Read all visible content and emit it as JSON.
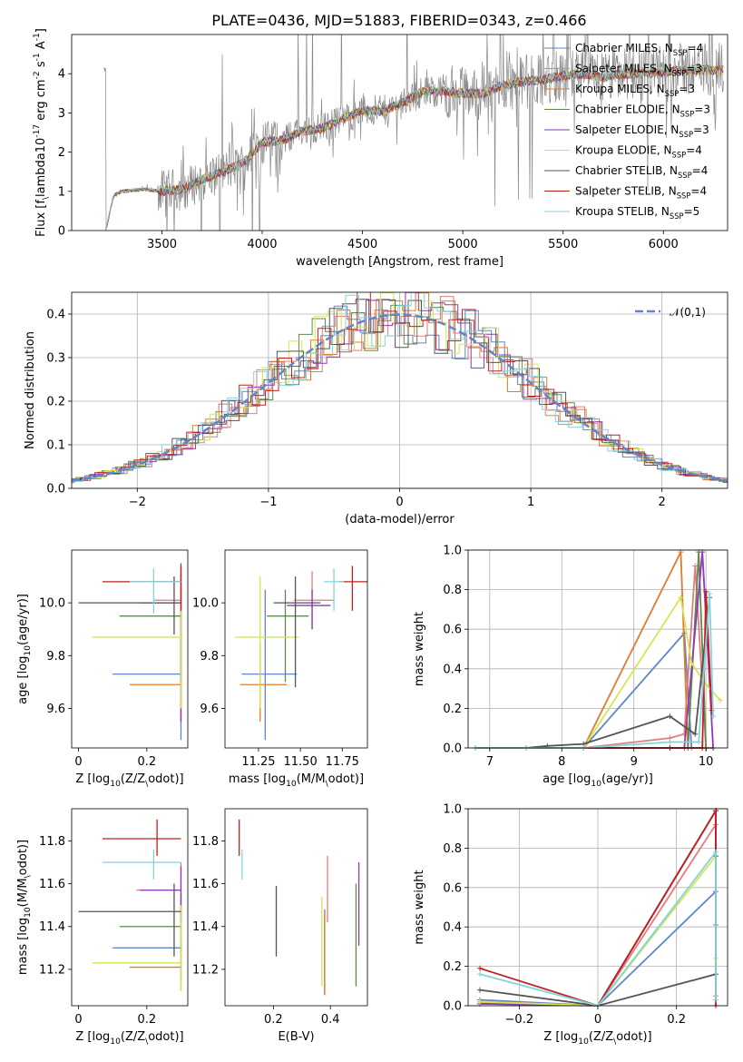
{
  "figure": {
    "title": "PLATE=0436, MJD=51883, FIBERID=0343, z=0.466"
  },
  "colors": {
    "Chabrier MILES": "#5f86c9",
    "Salpeter MILES": "#e37d7b",
    "Kroupa MILES": "#e07b2a",
    "Chabrier ELODIE": "#5e8a4f",
    "Salpeter ELODIE": "#8e3ab1",
    "Kroupa ELODIE": "#d5e552",
    "Chabrier STELIB": "#555555",
    "Salpeter STELIB": "#c21f1f",
    "Kroupa STELIB": "#7fd5dc",
    "data": "#888888",
    "gaussian": "#5f86c9"
  },
  "chart_data": [
    {
      "id": "spectrum",
      "type": "line",
      "xlabel": "wavelength [Angstrom, rest frame]",
      "ylabel": "Flux [f$_\\lambda$10$^{-17}$ erg cm$^{-2}$ s$^{-1}$ A$^{-1}$]",
      "xlim": [
        3050,
        6320
      ],
      "ylim": [
        0,
        5
      ],
      "xticks": [
        3500,
        4000,
        4500,
        5000,
        5500,
        6000
      ],
      "yticks": [
        0,
        1,
        2,
        3,
        4
      ],
      "legend_position": "right",
      "legend": [
        {
          "name": "Chabrier MILES",
          "nssp": "4"
        },
        {
          "name": "Salpeter MILES",
          "nssp": "3"
        },
        {
          "name": "Kroupa MILES",
          "nssp": "3"
        },
        {
          "name": "Chabrier ELODIE",
          "nssp": "3"
        },
        {
          "name": "Salpeter ELODIE",
          "nssp": "3"
        },
        {
          "name": "Kroupa ELODIE",
          "nssp": "4"
        },
        {
          "name": "Chabrier STELIB",
          "nssp": "4"
        },
        {
          "name": "Salpeter STELIB",
          "nssp": "4"
        },
        {
          "name": "Kroupa STELIB",
          "nssp": "5"
        }
      ],
      "model_continuum": {
        "x": [
          3220,
          3260,
          3300,
          3400,
          3500,
          3600,
          3700,
          3800,
          3900,
          4000,
          4100,
          4200,
          4300,
          4400,
          4500,
          4600,
          4700,
          4800,
          4900,
          5000,
          5100,
          5200,
          5300,
          5400,
          5500,
          5600,
          5700,
          5800,
          5900,
          6000,
          6100,
          6200,
          6300
        ],
        "y": [
          0.0,
          0.9,
          1.0,
          1.05,
          1.0,
          1.05,
          1.3,
          1.5,
          1.7,
          2.25,
          2.3,
          2.55,
          2.6,
          2.85,
          3.05,
          3.05,
          3.25,
          3.55,
          3.55,
          3.5,
          3.5,
          3.7,
          3.8,
          3.85,
          3.95,
          4.0,
          3.9,
          4.0,
          4.0,
          4.05,
          4.1,
          4.1,
          4.1
        ]
      }
    },
    {
      "id": "residuals",
      "type": "histogram",
      "xlabel": "(data-model)/error",
      "ylabel": "Normed distribution",
      "xlim": [
        -2.5,
        2.5
      ],
      "ylim": [
        0,
        0.45
      ],
      "xticks": [
        -2,
        -1,
        0,
        1,
        2
      ],
      "yticks": [
        0.0,
        0.1,
        0.2,
        0.3,
        0.4
      ],
      "grid": true,
      "legend_position": "top-right",
      "legend": "$\\mathcal{N}(0,1)$",
      "bin_width": 0.1,
      "reference_curve": "standard normal"
    },
    {
      "id": "age-vs-Z",
      "type": "errorbar",
      "xlabel": "Z [log$_{10}$(Z/Z$_\\odot$)]",
      "ylabel": "age  [log$_{10}$(age/yr)]",
      "xlim": [
        -0.02,
        0.32
      ],
      "ylim": [
        9.45,
        10.2
      ],
      "xticks": [
        0.0,
        0.2
      ],
      "yticks": [
        9.6,
        9.8,
        10.0
      ],
      "points": [
        {
          "series": "Chabrier MILES",
          "x": 0.3,
          "y": 9.73,
          "xlo": 0.1,
          "xhi": 0.3,
          "ylo": 9.48,
          "yhi": 10.1
        },
        {
          "series": "Salpeter MILES",
          "x": 0.3,
          "y": 10.01,
          "xlo": 0.22,
          "xhi": 0.3,
          "ylo": 9.9,
          "yhi": 10.12
        },
        {
          "series": "Kroupa MILES",
          "x": 0.3,
          "y": 9.69,
          "xlo": 0.15,
          "xhi": 0.3,
          "ylo": 9.55,
          "yhi": 9.9
        },
        {
          "series": "Chabrier ELODIE",
          "x": 0.3,
          "y": 9.95,
          "xlo": 0.12,
          "xhi": 0.3,
          "ylo": 9.7,
          "yhi": 10.05
        },
        {
          "series": "Salpeter ELODIE",
          "x": 0.3,
          "y": 10.0,
          "xlo": 0.18,
          "xhi": 0.3,
          "ylo": 9.55,
          "yhi": 10.15
        },
        {
          "series": "Kroupa ELODIE",
          "x": 0.3,
          "y": 9.87,
          "xlo": 0.04,
          "xhi": 0.3,
          "ylo": 9.6,
          "yhi": 10.1
        },
        {
          "series": "Chabrier STELIB",
          "x": 0.28,
          "y": 10.0,
          "xlo": 0.0,
          "xhi": 0.3,
          "ylo": 9.88,
          "yhi": 10.1
        },
        {
          "series": "Salpeter STELIB",
          "x": 0.3,
          "y": 10.08,
          "xlo": 0.07,
          "xhi": 0.3,
          "ylo": 9.97,
          "yhi": 10.14
        },
        {
          "series": "Kroupa STELIB",
          "x": 0.22,
          "y": 10.08,
          "xlo": 0.15,
          "xhi": 0.3,
          "ylo": 9.96,
          "yhi": 10.13
        }
      ]
    },
    {
      "id": "age-vs-mass",
      "type": "errorbar",
      "xlabel": "mass [log$_{10}$(M/M$_\\odot$)]",
      "ylabel": "",
      "xlim": [
        11.05,
        11.9
      ],
      "ylim": [
        9.45,
        10.2
      ],
      "xticks": [
        11.25,
        11.5,
        11.75
      ],
      "xticklabels": [
        "11.25",
        "11.50",
        "11.75"
      ],
      "yticks": [
        9.6,
        9.8,
        10.0
      ],
      "points": [
        {
          "series": "Chabrier MILES",
          "x": 11.29,
          "y": 9.73,
          "xlo": 11.15,
          "xhi": 11.48,
          "ylo": 9.48,
          "yhi": 10.05
        },
        {
          "series": "Salpeter MILES",
          "x": 11.57,
          "y": 10.01,
          "xlo": 11.46,
          "xhi": 11.7,
          "ylo": 9.9,
          "yhi": 10.12
        },
        {
          "series": "Kroupa MILES",
          "x": 11.26,
          "y": 9.69,
          "xlo": 11.14,
          "xhi": 11.42,
          "ylo": 9.55,
          "yhi": 9.85
        },
        {
          "series": "Chabrier ELODIE",
          "x": 11.41,
          "y": 9.95,
          "xlo": 11.3,
          "xhi": 11.55,
          "ylo": 9.7,
          "yhi": 10.05
        },
        {
          "series": "Salpeter ELODIE",
          "x": 11.57,
          "y": 9.99,
          "xlo": 11.42,
          "xhi": 11.68,
          "ylo": 9.9,
          "yhi": 10.05
        },
        {
          "series": "Kroupa ELODIE",
          "x": 11.26,
          "y": 9.87,
          "xlo": 11.11,
          "xhi": 11.49,
          "ylo": 9.6,
          "yhi": 10.1
        },
        {
          "series": "Chabrier STELIB",
          "x": 11.47,
          "y": 10.0,
          "xlo": 11.34,
          "xhi": 11.62,
          "ylo": 9.68,
          "yhi": 10.1
        },
        {
          "series": "Salpeter STELIB",
          "x": 11.81,
          "y": 10.08,
          "xlo": 11.73,
          "xhi": 11.9,
          "ylo": 9.97,
          "yhi": 10.14
        },
        {
          "series": "Kroupa STELIB",
          "x": 11.7,
          "y": 10.08,
          "xlo": 11.64,
          "xhi": 11.76,
          "ylo": 9.97,
          "yhi": 10.13
        }
      ]
    },
    {
      "id": "weight-vs-age",
      "type": "line",
      "xlabel": "age  [log$_{10}$(age/yr)]",
      "ylabel": "mass weight",
      "xlim": [
        6.7,
        10.3
      ],
      "ylim": [
        0,
        1
      ],
      "xticks": [
        7,
        8,
        9,
        10
      ],
      "yticks": [
        0.0,
        0.2,
        0.4,
        0.6,
        0.8,
        1.0
      ],
      "grid": true,
      "series": [
        {
          "name": "Chabrier MILES",
          "x": [
            6.8,
            7.5,
            8.3,
            9.7,
            9.8,
            10.0,
            10.1
          ],
          "y": [
            0.0,
            0.0,
            0.0,
            0.58,
            0.0,
            0.0,
            0.0
          ]
        },
        {
          "name": "Salpeter MILES",
          "x": [
            6.8,
            7.5,
            8.3,
            9.5,
            9.7,
            9.85,
            10.0,
            10.1
          ],
          "y": [
            0.0,
            0.0,
            0.0,
            0.05,
            0.07,
            0.92,
            0.0,
            0.0
          ]
        },
        {
          "name": "Kroupa MILES",
          "x": [
            6.8,
            7.5,
            8.3,
            9.65,
            9.75,
            10.0
          ],
          "y": [
            0.0,
            0.0,
            0.0,
            0.99,
            0.0,
            0.0
          ]
        },
        {
          "name": "Chabrier ELODIE",
          "x": [
            6.8,
            7.5,
            8.3,
            9.75,
            9.9,
            10.0
          ],
          "y": [
            0.0,
            0.0,
            0.0,
            0.0,
            0.99,
            0.0
          ]
        },
        {
          "name": "Salpeter ELODIE",
          "x": [
            6.8,
            7.5,
            8.3,
            9.5,
            9.7,
            9.95,
            10.1
          ],
          "y": [
            0.0,
            0.0,
            0.0,
            0.0,
            0.0,
            0.99,
            0.0
          ]
        },
        {
          "name": "Kroupa ELODIE",
          "x": [
            6.8,
            7.5,
            8.3,
            9.65,
            9.8,
            10.0,
            10.2
          ],
          "y": [
            0.0,
            0.0,
            0.0,
            0.76,
            0.43,
            0.32,
            0.24
          ]
        },
        {
          "name": "Chabrier STELIB",
          "x": [
            6.8,
            7.5,
            7.8,
            8.3,
            9.5,
            9.85,
            10.05
          ],
          "y": [
            0.0,
            0.0,
            0.01,
            0.02,
            0.16,
            0.07,
            0.76
          ]
        },
        {
          "name": "Salpeter STELIB",
          "x": [
            6.8,
            7.5,
            8.3,
            9.5,
            9.95,
            10.0,
            10.08
          ],
          "y": [
            0.0,
            0.0,
            0.0,
            0.0,
            0.0,
            0.79,
            0.19
          ]
        },
        {
          "name": "Kroupa STELIB",
          "x": [
            6.8,
            7.5,
            8.3,
            9.5,
            9.9,
            10.05,
            10.1
          ],
          "y": [
            0.0,
            0.0,
            0.0,
            0.03,
            0.03,
            0.78,
            0.16
          ]
        }
      ]
    },
    {
      "id": "mass-vs-Z",
      "type": "errorbar",
      "xlabel": "Z [log$_{10}$(Z/Z$_\\odot$)]",
      "ylabel": "mass [log$_{10}$(M/M$_\\odot$)]",
      "xlim": [
        -0.02,
        0.32
      ],
      "ylim": [
        11.03,
        11.95
      ],
      "xticks": [
        0.0,
        0.2
      ],
      "yticks": [
        11.2,
        11.4,
        11.6,
        11.8
      ],
      "points": [
        {
          "series": "Chabrier MILES",
          "x": 0.3,
          "y": 11.3,
          "xlo": 0.1,
          "xhi": 0.3,
          "ylo": 11.15,
          "yhi": 11.45
        },
        {
          "series": "Salpeter MILES",
          "x": 0.3,
          "y": 11.57,
          "xlo": 0.17,
          "xhi": 0.3,
          "ylo": 11.45,
          "yhi": 11.7
        },
        {
          "series": "Kroupa MILES",
          "x": 0.3,
          "y": 11.21,
          "xlo": 0.15,
          "xhi": 0.3,
          "ylo": 11.1,
          "yhi": 11.35
        },
        {
          "series": "Chabrier ELODIE",
          "x": 0.3,
          "y": 11.4,
          "xlo": 0.12,
          "xhi": 0.3,
          "ylo": 11.28,
          "yhi": 11.55
        },
        {
          "series": "Salpeter ELODIE",
          "x": 0.3,
          "y": 11.57,
          "xlo": 0.18,
          "xhi": 0.3,
          "ylo": 11.42,
          "yhi": 11.68
        },
        {
          "series": "Kroupa ELODIE",
          "x": 0.3,
          "y": 11.23,
          "xlo": 0.04,
          "xhi": 0.3,
          "ylo": 11.1,
          "yhi": 11.5
        },
        {
          "series": "Chabrier STELIB",
          "x": 0.28,
          "y": 11.47,
          "xlo": 0.0,
          "xhi": 0.3,
          "ylo": 11.26,
          "yhi": 11.6
        },
        {
          "series": "Salpeter STELIB",
          "x": 0.23,
          "y": 11.81,
          "xlo": 0.07,
          "xhi": 0.3,
          "ylo": 11.73,
          "yhi": 11.9
        },
        {
          "series": "Kroupa STELIB",
          "x": 0.22,
          "y": 11.7,
          "xlo": 0.07,
          "xhi": 0.3,
          "ylo": 11.62,
          "yhi": 11.76
        }
      ]
    },
    {
      "id": "mass-vs-ebv",
      "type": "errorbar",
      "xlabel": "E(B-V)",
      "ylabel": "",
      "xlim": [
        0.03,
        0.53
      ],
      "ylim": [
        11.03,
        11.95
      ],
      "xticks": [
        0.2,
        0.4
      ],
      "yticks": [
        11.2,
        11.4,
        11.6,
        11.8
      ],
      "points": [
        {
          "series": "Chabrier MILES",
          "x": 0.38,
          "y": 11.3,
          "ylo": 11.08,
          "yhi": 11.48
        },
        {
          "series": "Salpeter MILES",
          "x": 0.39,
          "y": 11.57,
          "ylo": 11.42,
          "yhi": 11.73
        },
        {
          "series": "Kroupa MILES",
          "x": 0.38,
          "y": 11.21,
          "ylo": 11.08,
          "yhi": 11.46
        },
        {
          "series": "Chabrier ELODIE",
          "x": 0.49,
          "y": 11.4,
          "ylo": 11.12,
          "yhi": 11.6
        },
        {
          "series": "Salpeter ELODIE",
          "x": 0.5,
          "y": 11.57,
          "ylo": 11.31,
          "yhi": 11.7
        },
        {
          "series": "Kroupa ELODIE",
          "x": 0.37,
          "y": 11.23,
          "ylo": 11.12,
          "yhi": 11.54
        },
        {
          "series": "Chabrier STELIB",
          "x": 0.21,
          "y": 11.47,
          "ylo": 11.26,
          "yhi": 11.59
        },
        {
          "series": "Salpeter STELIB",
          "x": 0.08,
          "y": 11.81,
          "ylo": 11.73,
          "yhi": 11.9
        },
        {
          "series": "Kroupa STELIB",
          "x": 0.09,
          "y": 11.7,
          "ylo": 11.62,
          "yhi": 11.76
        }
      ]
    },
    {
      "id": "weight-vs-Z",
      "type": "line",
      "xlabel": "Z [log$_{10}$(Z/Z$_\\odot$)]",
      "ylabel": "mass weight",
      "xlim": [
        -0.33,
        0.33
      ],
      "ylim": [
        0,
        1
      ],
      "xticks": [
        -0.2,
        0.0,
        0.2
      ],
      "yticks": [
        0.0,
        0.2,
        0.4,
        0.6,
        0.8,
        1.0
      ],
      "grid": true,
      "series": [
        {
          "name": "Chabrier MILES",
          "x": [
            -0.3,
            0.0,
            0.3,
            0.3
          ],
          "y": [
            0.03,
            0.0,
            0.58,
            0.41
          ]
        },
        {
          "name": "Salpeter MILES",
          "x": [
            -0.3,
            0.0,
            0.3,
            0.3
          ],
          "y": [
            0.02,
            0.0,
            0.92,
            0.05
          ]
        },
        {
          "name": "Kroupa MILES",
          "x": [
            -0.3,
            0.0,
            0.3,
            0.3
          ],
          "y": [
            0.01,
            0.0,
            0.99,
            0.0
          ]
        },
        {
          "name": "Chabrier ELODIE",
          "x": [
            -0.3,
            0.0,
            0.3,
            0.3
          ],
          "y": [
            0.02,
            0.0,
            0.99,
            0.0
          ]
        },
        {
          "name": "Salpeter ELODIE",
          "x": [
            -0.3,
            0.0,
            0.3,
            0.3
          ],
          "y": [
            0.01,
            0.0,
            0.99,
            0.0
          ]
        },
        {
          "name": "Kroupa ELODIE",
          "x": [
            -0.3,
            0.0,
            0.3,
            0.3
          ],
          "y": [
            0.02,
            0.0,
            0.76,
            0.24
          ]
        },
        {
          "name": "Chabrier STELIB",
          "x": [
            -0.3,
            0.0,
            0.3,
            0.3
          ],
          "y": [
            0.08,
            0.0,
            0.16,
            0.76
          ]
        },
        {
          "name": "Salpeter STELIB",
          "x": [
            -0.3,
            0.0,
            0.3,
            0.3
          ],
          "y": [
            0.19,
            0.0,
            0.99,
            0.0
          ]
        },
        {
          "name": "Kroupa STELIB",
          "x": [
            -0.3,
            0.0,
            0.3,
            0.3
          ],
          "y": [
            0.16,
            0.0,
            0.78,
            0.03
          ]
        }
      ]
    }
  ]
}
